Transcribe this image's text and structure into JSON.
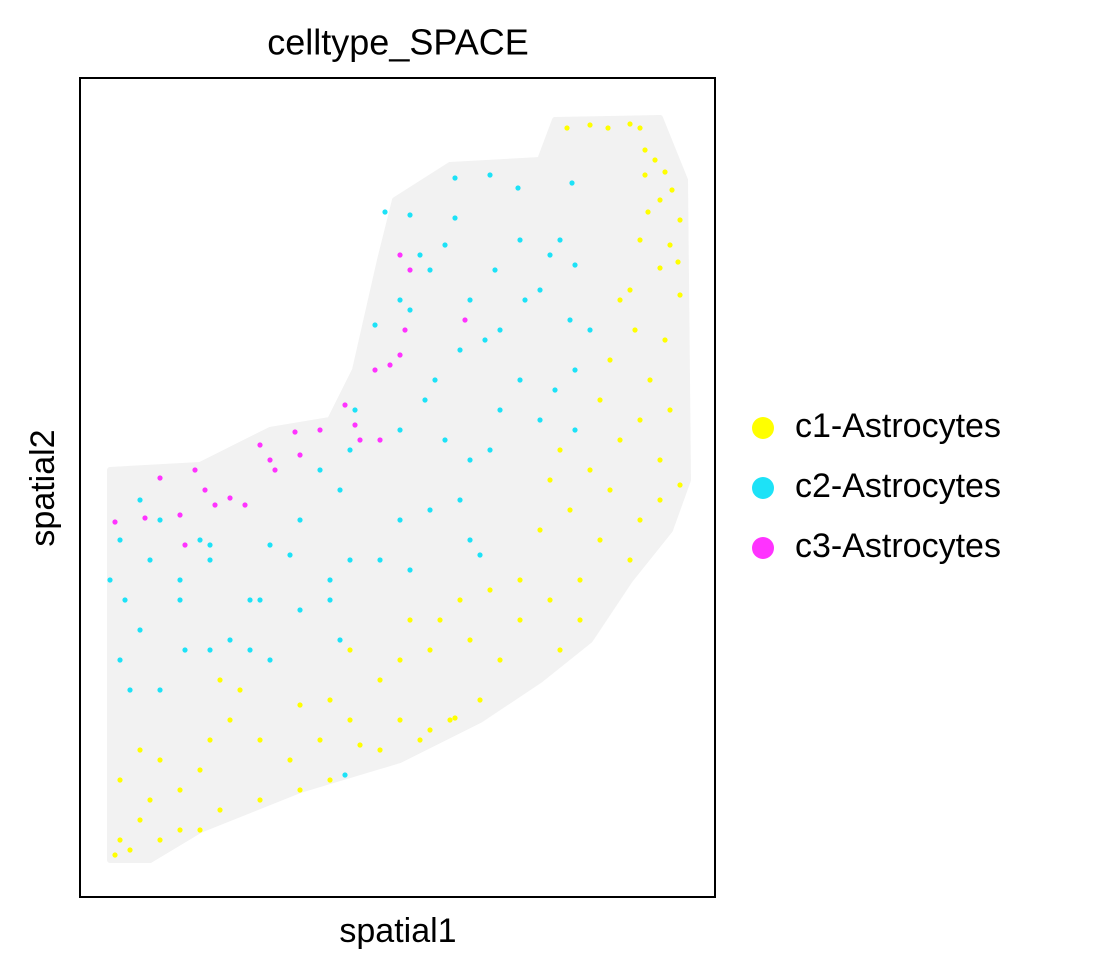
{
  "chart_data": {
    "type": "scatter",
    "title": "celltype_SPACE",
    "x_label": "spatial1",
    "y_label": "spatial2",
    "xlim": [
      80,
      715
    ],
    "ylim": [
      897,
      78
    ],
    "legend": "right",
    "series": [
      {
        "name": "c1-Astrocytes",
        "color": "#ffff00",
        "x": [
          567,
          590,
          608,
          630,
          640,
          645,
          655,
          645,
          665,
          672,
          660,
          648,
          680,
          640,
          670,
          660,
          678,
          630,
          620,
          680,
          635,
          665,
          610,
          650,
          600,
          670,
          640,
          560,
          620,
          590,
          660,
          550,
          610,
          680,
          570,
          640,
          660,
          540,
          600,
          630,
          580,
          520,
          550,
          490,
          460,
          440,
          410,
          520,
          580,
          560,
          500,
          470,
          430,
          400,
          350,
          380,
          330,
          300,
          350,
          400,
          450,
          480,
          420,
          380,
          320,
          290,
          300,
          260,
          220,
          200,
          180,
          160,
          140,
          120,
          115,
          130,
          120,
          140,
          160,
          180,
          150,
          200,
          230,
          260,
          220,
          240,
          210,
          330,
          360,
          430,
          455
        ],
        "values": [
          128,
          125,
          128,
          124,
          128,
          150,
          160,
          175,
          172,
          190,
          200,
          212,
          220,
          240,
          245,
          268,
          262,
          290,
          300,
          295,
          330,
          340,
          360,
          380,
          400,
          410,
          420,
          450,
          440,
          470,
          460,
          480,
          490,
          485,
          510,
          520,
          500,
          530,
          540,
          560,
          580,
          580,
          600,
          590,
          600,
          620,
          620,
          620,
          620,
          650,
          660,
          640,
          650,
          660,
          650,
          680,
          700,
          705,
          720,
          720,
          720,
          700,
          740,
          750,
          740,
          760,
          790,
          800,
          810,
          830,
          830,
          840,
          820,
          840,
          855,
          850,
          780,
          750,
          760,
          790,
          800,
          770,
          720,
          740,
          680,
          690,
          740,
          780,
          745,
          730,
          718
        ]
      },
      {
        "name": "c2-Astrocytes",
        "color": "#1de2f7",
        "x": [
          385,
          410,
          455,
          490,
          518,
          572,
          455,
          445,
          420,
          430,
          400,
          410,
          470,
          495,
          520,
          550,
          560,
          575,
          525,
          500,
          485,
          540,
          570,
          590,
          575,
          555,
          375,
          435,
          460,
          425,
          500,
          520,
          540,
          575,
          400,
          355,
          350,
          340,
          320,
          300,
          290,
          270,
          250,
          230,
          210,
          200,
          180,
          150,
          160,
          140,
          120,
          110,
          125,
          140,
          120,
          130,
          160,
          185,
          210,
          250,
          270,
          300,
          330,
          350,
          380,
          410,
          400,
          430,
          460,
          470,
          480,
          490,
          470,
          445,
          340,
          330,
          260,
          345,
          180,
          210
        ],
        "values": [
          212,
          215,
          178,
          175,
          188,
          183,
          218,
          245,
          255,
          270,
          300,
          310,
          300,
          270,
          240,
          255,
          240,
          265,
          300,
          330,
          340,
          290,
          320,
          330,
          370,
          390,
          325,
          380,
          350,
          400,
          410,
          380,
          420,
          430,
          430,
          410,
          450,
          490,
          470,
          520,
          555,
          545,
          600,
          640,
          560,
          540,
          580,
          560,
          520,
          500,
          540,
          580,
          600,
          630,
          660,
          690,
          690,
          650,
          650,
          650,
          660,
          610,
          600,
          560,
          560,
          570,
          520,
          510,
          500,
          540,
          555,
          450,
          460,
          440,
          640,
          580,
          600,
          775,
          600,
          545
        ]
      },
      {
        "name": "c3-Astrocytes",
        "color": "#ff33ff",
        "x": [
          115,
          145,
          160,
          180,
          195,
          205,
          215,
          230,
          245,
          260,
          275,
          270,
          295,
          300,
          320,
          345,
          355,
          360,
          380,
          375,
          390,
          400,
          405,
          400,
          410,
          465,
          185
        ],
        "values": [
          522,
          518,
          478,
          515,
          470,
          490,
          505,
          498,
          505,
          445,
          470,
          460,
          432,
          455,
          430,
          405,
          425,
          440,
          440,
          370,
          365,
          355,
          330,
          255,
          270,
          320,
          545
        ]
      }
    ]
  }
}
